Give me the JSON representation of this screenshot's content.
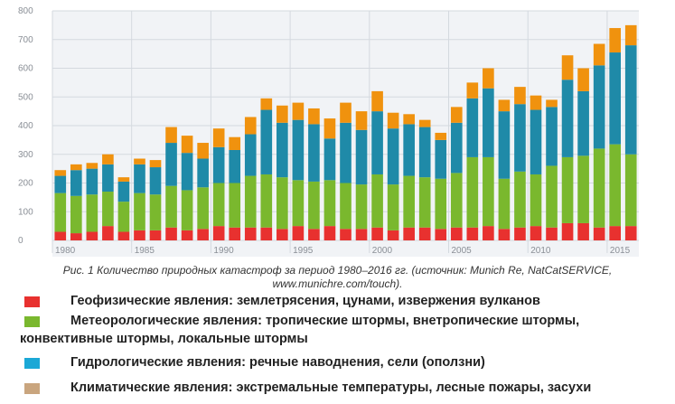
{
  "chart_data": {
    "type": "bar",
    "stacked": true,
    "x": [
      1980,
      1981,
      1982,
      1983,
      1984,
      1985,
      1986,
      1987,
      1988,
      1989,
      1990,
      1991,
      1992,
      1993,
      1994,
      1995,
      1996,
      1997,
      1998,
      1999,
      2000,
      2001,
      2002,
      2003,
      2004,
      2005,
      2006,
      2007,
      2008,
      2009,
      2010,
      2011,
      2012,
      2013,
      2014,
      2015,
      2016
    ],
    "x_tick_labels": [
      "1980",
      "1985",
      "1990",
      "1995",
      "2000",
      "2005",
      "2010",
      "2015"
    ],
    "ylim": [
      0,
      800
    ],
    "y_ticks": [
      0,
      100,
      200,
      300,
      400,
      500,
      600,
      700,
      800
    ],
    "grid": true,
    "series": [
      {
        "values": [
          30,
          25,
          30,
          50,
          30,
          35,
          35,
          45,
          35,
          40,
          50,
          45,
          45,
          45,
          40,
          50,
          40,
          50,
          40,
          40,
          45,
          35,
          45,
          45,
          40,
          45,
          45,
          50,
          40,
          45,
          50,
          45,
          60,
          60,
          45,
          50,
          50
        ],
        "color": "#e8312f"
      },
      {
        "values": [
          135,
          130,
          130,
          120,
          105,
          130,
          125,
          145,
          140,
          145,
          150,
          155,
          180,
          185,
          180,
          160,
          165,
          160,
          160,
          155,
          185,
          160,
          180,
          175,
          175,
          190,
          245,
          240,
          175,
          195,
          180,
          215,
          230,
          235,
          275,
          285,
          250
        ],
        "color": "#7ab82e"
      },
      {
        "values": [
          60,
          90,
          90,
          95,
          70,
          100,
          95,
          150,
          130,
          100,
          125,
          115,
          145,
          225,
          190,
          210,
          200,
          145,
          210,
          190,
          220,
          195,
          180,
          175,
          135,
          175,
          205,
          240,
          235,
          235,
          225,
          205,
          270,
          225,
          290,
          320,
          380
        ],
        "color": "#1f8aa8"
      },
      {
        "values": [
          20,
          20,
          20,
          35,
          15,
          20,
          25,
          55,
          60,
          55,
          65,
          45,
          60,
          40,
          60,
          60,
          55,
          70,
          70,
          65,
          70,
          55,
          35,
          25,
          25,
          55,
          55,
          70,
          40,
          60,
          50,
          25,
          85,
          80,
          75,
          85,
          70
        ],
        "color": "#f0920e"
      }
    ]
  },
  "caption": {
    "line1": "Рис. 1 Количество природных катастроф за период 1980–2016 гг. (источник: Munich Re, NatCatSERVICE,",
    "line2": "www.munichre.com/touch)."
  },
  "legend": {
    "items": [
      {
        "text": "Геофизические явления: землетрясения, цунами, извержения вулканов",
        "color": "#e8312f"
      },
      {
        "text": "Метеорологические  явления:  тропические  штормы,  внетропические  штормы,",
        "text2": "конвективные штормы, локальные штормы",
        "color": "#7ab82e"
      },
      {
        "text": "Гидрологические явления: речные наводнения, сели (оползни)",
        "color": "#1ba8d6"
      },
      {
        "text": "Климатические явления: экстремальные температуры, лесные пожары, засухи",
        "color": "#c9a57e"
      }
    ]
  }
}
